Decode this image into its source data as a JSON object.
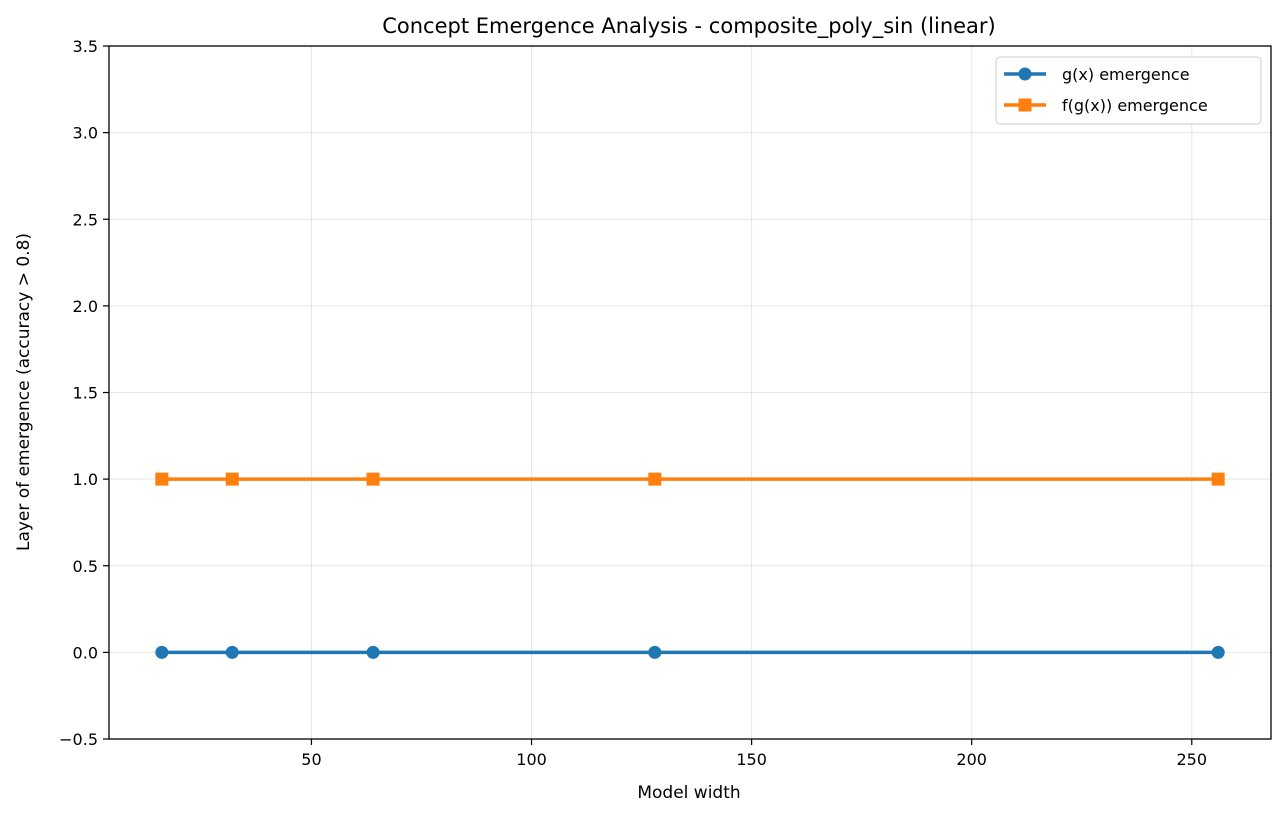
{
  "chart_data": {
    "type": "line",
    "title": "Concept Emergence Analysis - composite_poly_sin (linear)",
    "xlabel": "Model width",
    "ylabel": "Layer of emergence (accuracy > 0.8)",
    "xlim": [
      4.0,
      268.0
    ],
    "ylim": [
      -0.5,
      3.5
    ],
    "x_ticks": [
      50,
      100,
      150,
      200,
      250
    ],
    "y_ticks": [
      -0.5,
      0.0,
      0.5,
      1.0,
      1.5,
      2.0,
      2.5,
      3.0,
      3.5
    ],
    "x_tick_labels": [
      "50",
      "100",
      "150",
      "200",
      "250"
    ],
    "y_tick_labels": [
      "−0.5",
      "0.0",
      "0.5",
      "1.0",
      "1.5",
      "2.0",
      "2.5",
      "3.0",
      "3.5"
    ],
    "grid": true,
    "legend_position": "top-right",
    "x": [
      16,
      32,
      64,
      128,
      256
    ],
    "series": [
      {
        "name": "g(x) emergence",
        "values": [
          0,
          0,
          0,
          0,
          0
        ],
        "color": "#1f77b4",
        "marker": "circle"
      },
      {
        "name": "f(g(x)) emergence",
        "values": [
          1,
          1,
          1,
          1,
          1
        ],
        "color": "#ff7f0e",
        "marker": "square"
      }
    ]
  }
}
